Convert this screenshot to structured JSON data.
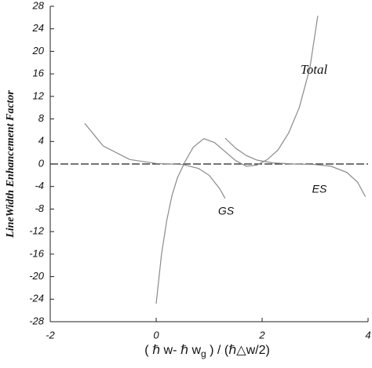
{
  "chart_data": {
    "type": "line",
    "ylabel": "LineWidth Enhancement Factor",
    "xlabel": [
      "( ℏ w- ℏ w",
      "g",
      " )  / (ℏ△w/2)"
    ],
    "xlim": [
      -2,
      4
    ],
    "xticks": [
      -2,
      0,
      2,
      4
    ],
    "ylim": [
      -28,
      28
    ],
    "yticks": [
      -28,
      -24,
      -20,
      -16,
      -12,
      -8,
      -4,
      0,
      4,
      8,
      12,
      16,
      20,
      24,
      28
    ],
    "hline": 0,
    "series": [
      {
        "name": "Total",
        "color": "#8a8a8a",
        "x": [
          0,
          0.1,
          0.2,
          0.3,
          0.4,
          0.55,
          0.7,
          0.9,
          1.1,
          1.3,
          1.5,
          1.7,
          1.9,
          2.1,
          2.3,
          2.5,
          2.7,
          2.9,
          3.05
        ],
        "values": [
          -24.8,
          -16,
          -10,
          -5.5,
          -2.5,
          0.5,
          3,
          4.5,
          3.8,
          2.2,
          0.6,
          -0.4,
          -0.2,
          0.8,
          2.5,
          5.5,
          10,
          17,
          26.3
        ]
      },
      {
        "name": "GS",
        "color": "#8a8a8a",
        "x": [
          -1.35,
          -1,
          -0.5,
          0,
          0.5,
          0.8,
          1.0,
          1.2,
          1.3
        ],
        "values": [
          7.2,
          3.2,
          0.8,
          0.1,
          -0.1,
          -0.8,
          -2,
          -4.4,
          -6.1
        ]
      },
      {
        "name": "ES",
        "color": "#8a8a8a",
        "x": [
          1.3,
          1.5,
          1.7,
          1.9,
          2.2,
          2.6,
          3.0,
          3.3,
          3.6,
          3.8,
          3.95
        ],
        "values": [
          4.6,
          2.8,
          1.5,
          0.7,
          0.2,
          0,
          -0.1,
          -0.4,
          -1.5,
          -3.2,
          -5.8
        ]
      }
    ]
  }
}
